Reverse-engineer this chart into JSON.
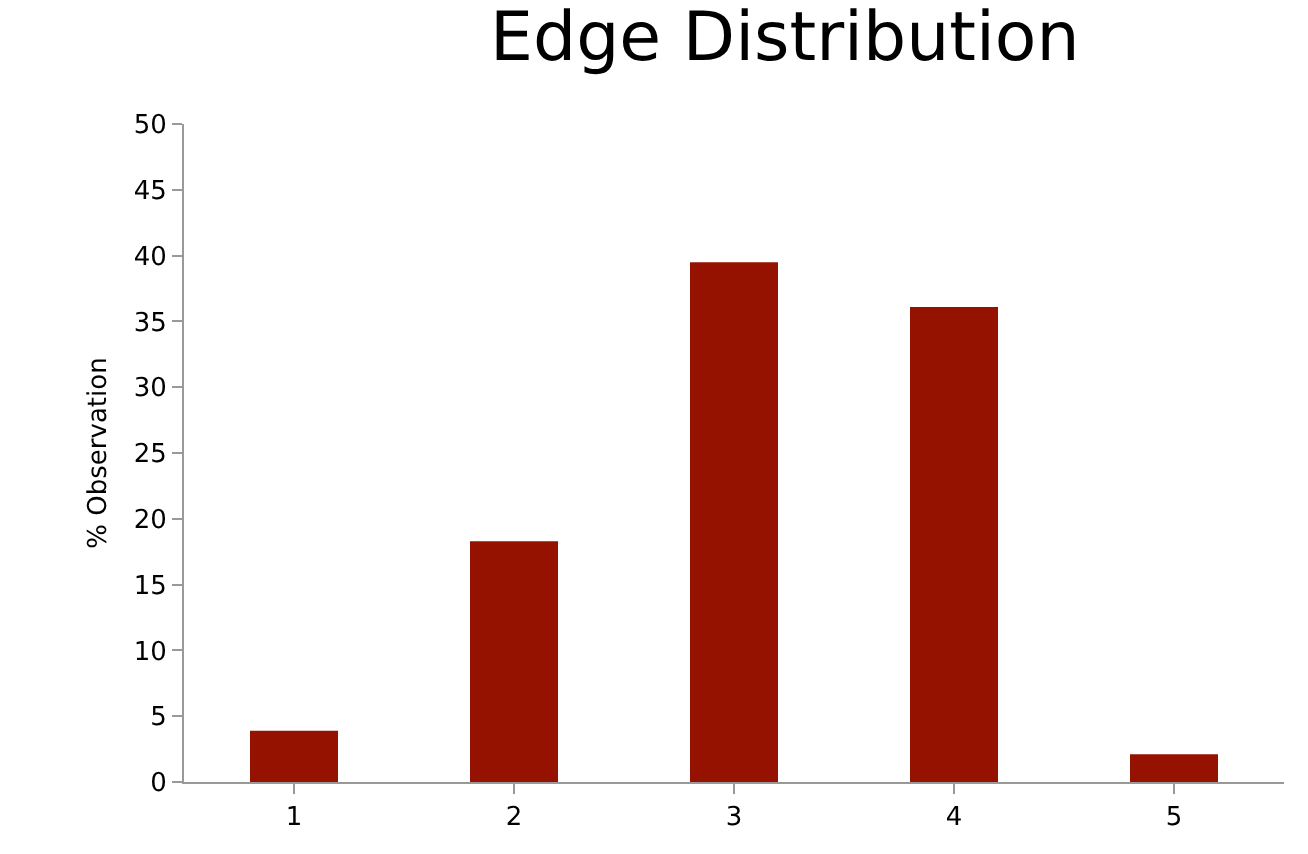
{
  "chart_data": {
    "type": "bar",
    "title": "Edge Distribution",
    "ylabel": "% Observation",
    "categories": [
      "1",
      "2",
      "3",
      "4",
      "5"
    ],
    "values": [
      3.9,
      18.3,
      39.5,
      36.1,
      2.1
    ],
    "color": "#961200",
    "ylim": [
      0,
      50
    ],
    "yticks": [
      0,
      5,
      10,
      15,
      20,
      25,
      30,
      35,
      40,
      45,
      50
    ],
    "grid": false,
    "legend": false
  }
}
